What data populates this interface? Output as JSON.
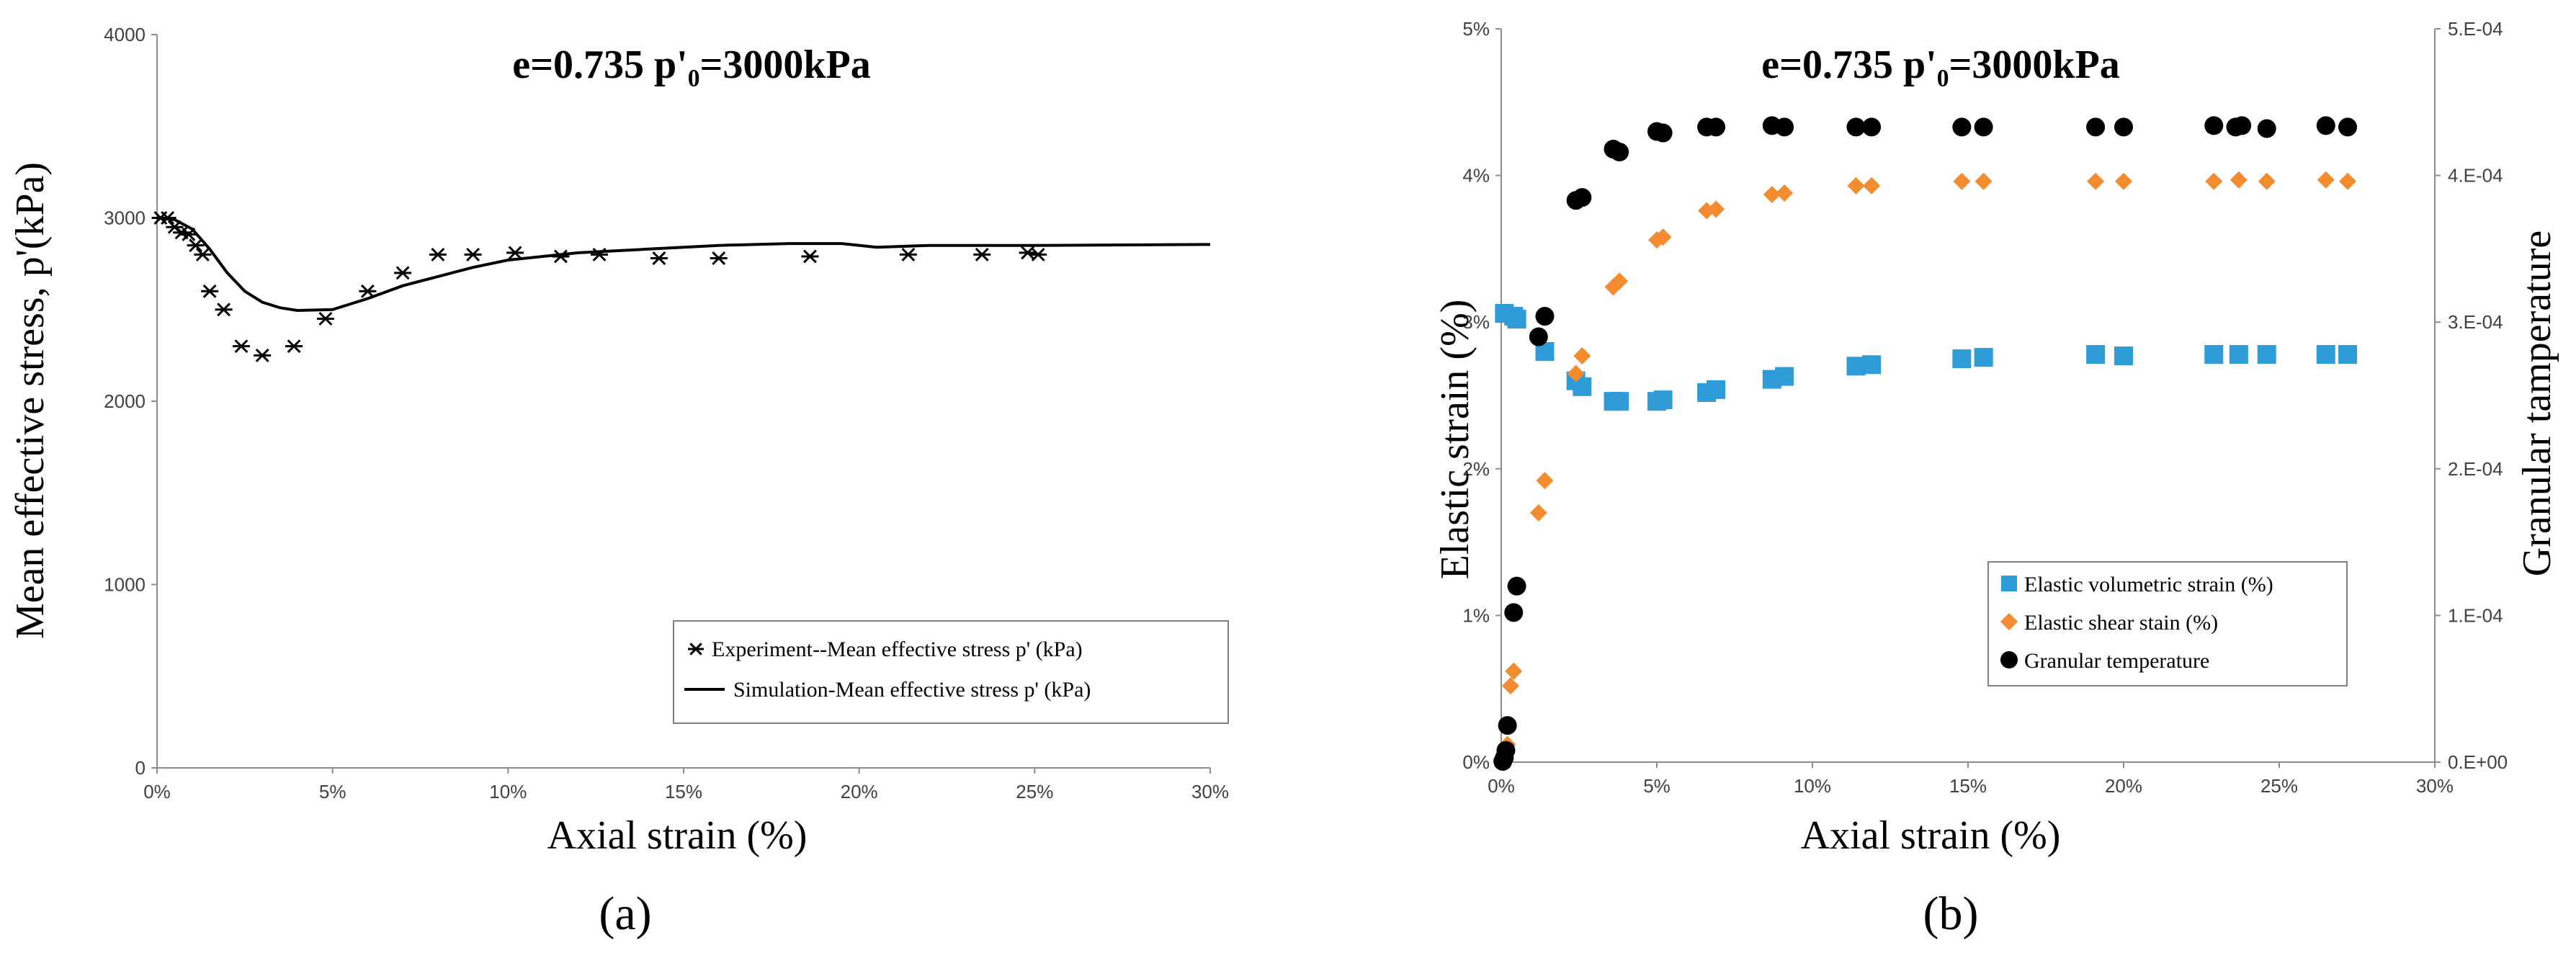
{
  "chart_data": [
    {
      "type": "scatter",
      "panel_label": "(a)",
      "title": "e=0.735  p'₀=3000kPa",
      "xlabel": "Axial strain  (%)",
      "ylabel": "Mean effective stress,  p'(kPa)",
      "xlim": [
        0,
        30
      ],
      "ylim": [
        0,
        4000
      ],
      "x_ticks": [
        "0%",
        "5%",
        "10%",
        "15%",
        "20%",
        "25%",
        "30%"
      ],
      "y_ticks": [
        "0",
        "1000",
        "2000",
        "3000",
        "4000"
      ],
      "grid": false,
      "legend_position": "bottom-right",
      "series": [
        {
          "name": "Experiment--Mean effective stress p'  (kPa)",
          "kind": "scatter",
          "marker": "asterisk",
          "color": "#000000",
          "points": [
            [
              0.1,
              3000
            ],
            [
              0.3,
              3000
            ],
            [
              0.5,
              2950
            ],
            [
              0.7,
              2920
            ],
            [
              0.9,
              2910
            ],
            [
              1.1,
              2850
            ],
            [
              1.3,
              2800
            ],
            [
              1.5,
              2600
            ],
            [
              1.9,
              2500
            ],
            [
              2.4,
              2300
            ],
            [
              3.0,
              2250
            ],
            [
              3.9,
              2300
            ],
            [
              4.8,
              2450
            ],
            [
              6.0,
              2600
            ],
            [
              7.0,
              2700
            ],
            [
              8.0,
              2800
            ],
            [
              9.0,
              2800
            ],
            [
              10.2,
              2810
            ],
            [
              11.5,
              2790
            ],
            [
              12.6,
              2800
            ],
            [
              14.3,
              2780
            ],
            [
              16.0,
              2780
            ],
            [
              18.6,
              2790
            ],
            [
              21.4,
              2800
            ],
            [
              23.5,
              2800
            ],
            [
              24.8,
              2810
            ],
            [
              25.1,
              2800
            ]
          ]
        },
        {
          "name": "Simulation-Mean effective stress p'  (kPa)",
          "kind": "line",
          "color": "#000000",
          "points": [
            [
              0,
              3000
            ],
            [
              0.5,
              2990
            ],
            [
              1,
              2940
            ],
            [
              1.5,
              2830
            ],
            [
              2,
              2700
            ],
            [
              2.5,
              2600
            ],
            [
              3,
              2540
            ],
            [
              3.5,
              2510
            ],
            [
              4,
              2495
            ],
            [
              5,
              2500
            ],
            [
              6,
              2560
            ],
            [
              7,
              2630
            ],
            [
              8,
              2680
            ],
            [
              9,
              2730
            ],
            [
              10,
              2770
            ],
            [
              12,
              2810
            ],
            [
              14,
              2830
            ],
            [
              16,
              2850
            ],
            [
              18,
              2860
            ],
            [
              19.5,
              2860
            ],
            [
              20.5,
              2840
            ],
            [
              22,
              2850
            ],
            [
              25,
              2850
            ],
            [
              30,
              2855
            ]
          ]
        }
      ]
    },
    {
      "type": "scatter",
      "panel_label": "(b)",
      "title": "e=0.735  p'₀=3000kPa",
      "xlabel": "Axial strain  (%)",
      "ylabel": "Elastic strain  (%)",
      "y2label": "Granular tamperature",
      "xlim": [
        0,
        30
      ],
      "ylim": [
        0,
        5
      ],
      "y2lim": [
        0,
        0.0005
      ],
      "x_ticks": [
        "0%",
        "5%",
        "10%",
        "15%",
        "20%",
        "25%",
        "30%"
      ],
      "y_ticks": [
        "0%",
        "1%",
        "2%",
        "3%",
        "4%",
        "5%"
      ],
      "y2_ticks": [
        "0.E+00",
        "1.E-04",
        "2.E-04",
        "3.E-04",
        "4.E-04",
        "5.E-04"
      ],
      "grid": false,
      "legend_position": "bottom-right",
      "series": [
        {
          "name": "Elastic volumetric strain  (%)",
          "marker": "square",
          "color": "#2F9BD7",
          "axis": "left",
          "points": [
            [
              0.1,
              3.06
            ],
            [
              0.4,
              3.04
            ],
            [
              0.5,
              3.02
            ],
            [
              1.4,
              2.8
            ],
            [
              2.4,
              2.6
            ],
            [
              2.6,
              2.56
            ],
            [
              3.6,
              2.46
            ],
            [
              3.8,
              2.46
            ],
            [
              5.0,
              2.46
            ],
            [
              5.2,
              2.47
            ],
            [
              6.6,
              2.52
            ],
            [
              6.9,
              2.54
            ],
            [
              8.7,
              2.61
            ],
            [
              9.1,
              2.63
            ],
            [
              11.4,
              2.7
            ],
            [
              11.9,
              2.71
            ],
            [
              14.8,
              2.75
            ],
            [
              15.5,
              2.76
            ],
            [
              19.1,
              2.78
            ],
            [
              20.0,
              2.77
            ],
            [
              22.9,
              2.78
            ],
            [
              23.7,
              2.78
            ],
            [
              24.6,
              2.78
            ],
            [
              26.5,
              2.78
            ],
            [
              27.2,
              2.78
            ]
          ]
        },
        {
          "name": "Elastic shear stain  (%)",
          "marker": "diamond",
          "color": "#F28C2E",
          "axis": "left",
          "points": [
            [
              0.1,
              0.02
            ],
            [
              0.2,
              0.12
            ],
            [
              0.3,
              0.52
            ],
            [
              0.4,
              0.62
            ],
            [
              1.2,
              1.7
            ],
            [
              1.4,
              1.92
            ],
            [
              2.4,
              2.65
            ],
            [
              2.6,
              2.77
            ],
            [
              3.6,
              3.24
            ],
            [
              3.8,
              3.28
            ],
            [
              5.0,
              3.56
            ],
            [
              5.2,
              3.58
            ],
            [
              6.6,
              3.76
            ],
            [
              6.9,
              3.77
            ],
            [
              8.7,
              3.87
            ],
            [
              9.1,
              3.88
            ],
            [
              11.4,
              3.93
            ],
            [
              11.9,
              3.93
            ],
            [
              14.8,
              3.96
            ],
            [
              15.5,
              3.96
            ],
            [
              19.1,
              3.96
            ],
            [
              20.0,
              3.96
            ],
            [
              22.9,
              3.96
            ],
            [
              23.7,
              3.97
            ],
            [
              24.6,
              3.96
            ],
            [
              26.5,
              3.97
            ],
            [
              27.2,
              3.96
            ]
          ]
        },
        {
          "name": "Granular temperature",
          "marker": "circle",
          "color": "#000000",
          "axis": "right",
          "points": [
            [
              0.05,
              5e-07
            ],
            [
              0.1,
              3e-06
            ],
            [
              0.15,
              8e-06
            ],
            [
              0.2,
              2.5e-05
            ],
            [
              0.4,
              0.000102
            ],
            [
              0.5,
              0.00012
            ],
            [
              1.2,
              0.00029
            ],
            [
              1.4,
              0.000304
            ],
            [
              2.4,
              0.000383
            ],
            [
              2.6,
              0.000385
            ],
            [
              3.6,
              0.000418
            ],
            [
              3.8,
              0.000416
            ],
            [
              5.0,
              0.00043
            ],
            [
              5.2,
              0.000429
            ],
            [
              6.6,
              0.000433
            ],
            [
              6.9,
              0.000433
            ],
            [
              8.7,
              0.000434
            ],
            [
              9.1,
              0.000433
            ],
            [
              11.4,
              0.000433
            ],
            [
              11.9,
              0.000433
            ],
            [
              14.8,
              0.000433
            ],
            [
              15.5,
              0.000433
            ],
            [
              19.1,
              0.000433
            ],
            [
              20.0,
              0.000433
            ],
            [
              22.9,
              0.000434
            ],
            [
              23.6,
              0.000433
            ],
            [
              23.8,
              0.000434
            ],
            [
              24.6,
              0.000432
            ],
            [
              26.5,
              0.000434
            ],
            [
              27.2,
              0.000433
            ]
          ]
        }
      ]
    }
  ]
}
